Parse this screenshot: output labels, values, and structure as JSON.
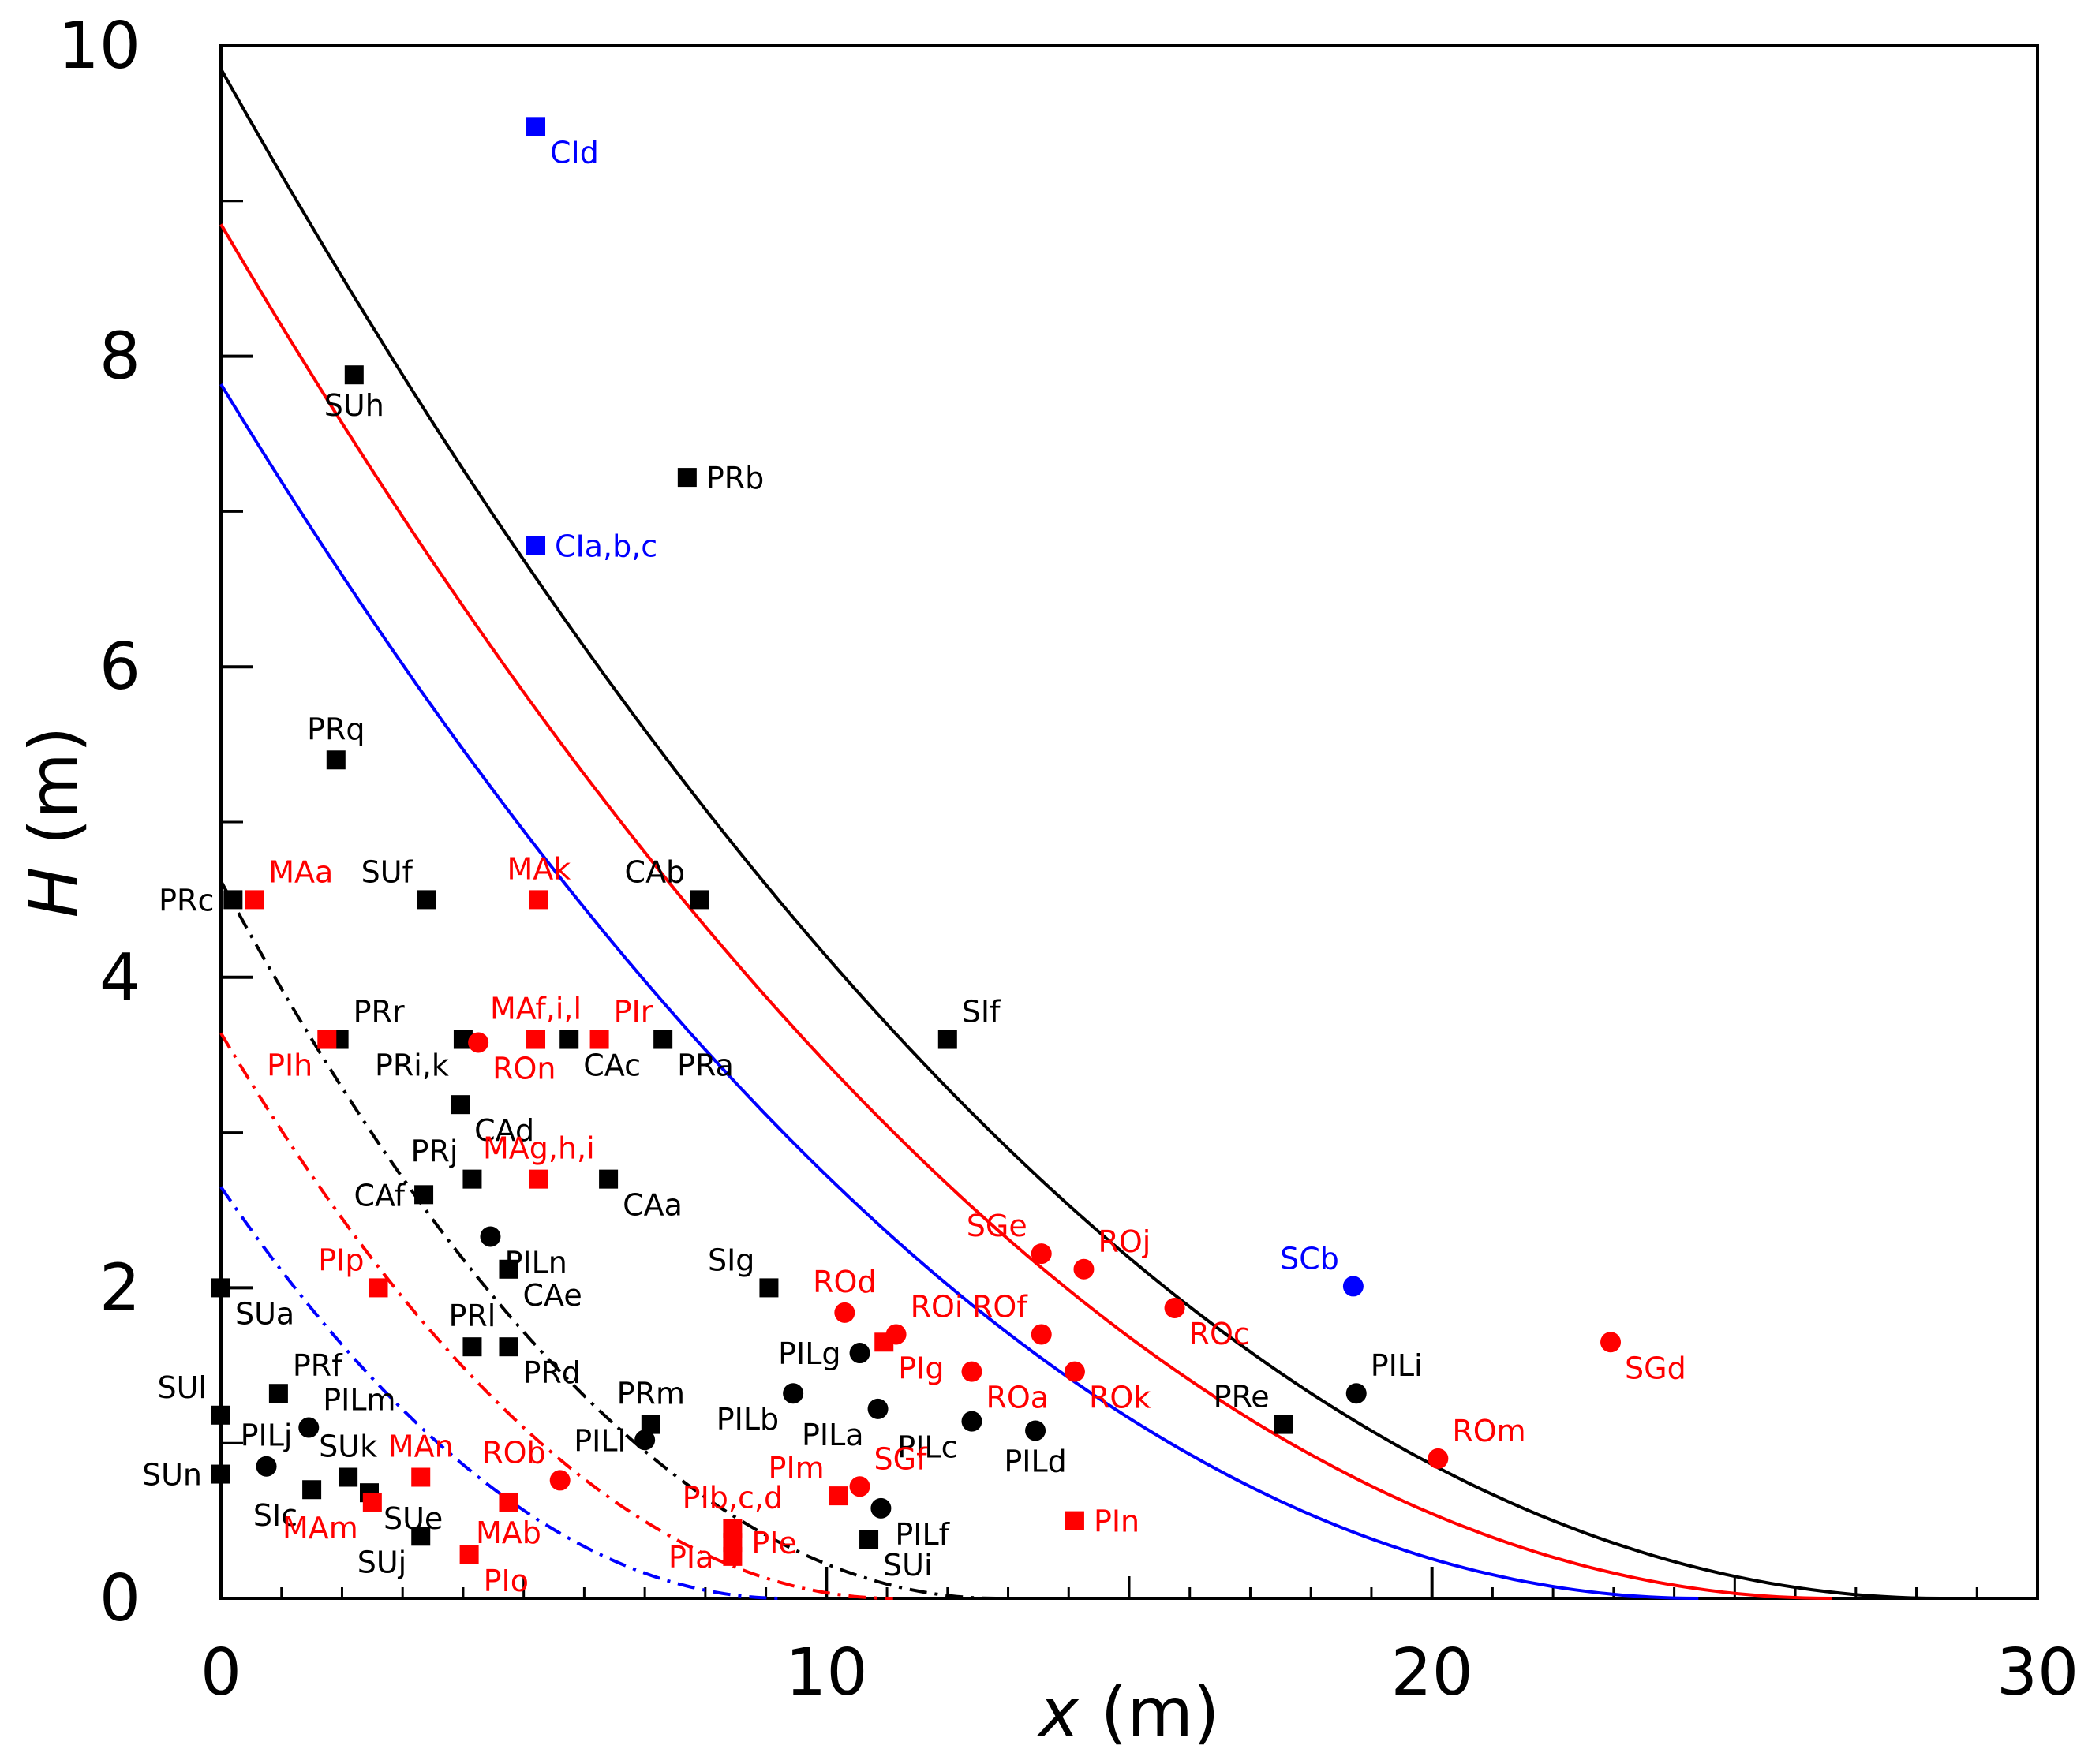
{
  "chart_data": {
    "type": "scatter",
    "title": "",
    "xlabel": {
      "var": "x",
      "unit": " (m)"
    },
    "ylabel": {
      "var": "H",
      "unit": " (m)"
    },
    "xlim": [
      0,
      30
    ],
    "ylim": [
      0,
      10
    ],
    "x_ticks": [
      "0",
      "10",
      "20",
      "30"
    ],
    "y_ticks": [
      "0",
      "2",
      "4",
      "6",
      "8",
      "10"
    ],
    "grid": false,
    "colors": {
      "black": "#000000",
      "red": "#ff0000",
      "blue": "#0000ff"
    },
    "curves": [
      {
        "name": "black-solid",
        "color": "black",
        "style": "solid",
        "h0": 9.85,
        "x_end": 28.4,
        "exponent": 2
      },
      {
        "name": "red-solid",
        "color": "red",
        "style": "solid",
        "h0": 8.85,
        "x_end": 26.6,
        "exponent": 2
      },
      {
        "name": "blue-solid",
        "color": "blue",
        "style": "solid",
        "h0": 7.82,
        "x_end": 24.4,
        "exponent": 2
      },
      {
        "name": "black-dashdot",
        "color": "black",
        "style": "dashdot",
        "h0": 4.62,
        "x_end": 12.8,
        "exponent": 2
      },
      {
        "name": "red-dashdot",
        "color": "red",
        "style": "dashdot",
        "h0": 3.64,
        "x_end": 11.1,
        "exponent": 2
      },
      {
        "name": "blue-dashdot",
        "color": "blue",
        "style": "dashdot",
        "h0": 2.65,
        "x_end": 9.3,
        "exponent": 2
      }
    ],
    "points": [
      {
        "label": "CId",
        "x": 5.2,
        "y": 9.48,
        "color": "blue",
        "marker": "square",
        "pos": "br"
      },
      {
        "label": "CIa,b,c",
        "x": 5.2,
        "y": 6.78,
        "color": "blue",
        "marker": "square",
        "pos": "r"
      },
      {
        "label": "SCb",
        "x": 18.7,
        "y": 2.01,
        "color": "blue",
        "marker": "circle",
        "pos": "tl"
      },
      {
        "label": "SUh",
        "x": 2.2,
        "y": 7.88,
        "color": "black",
        "marker": "square",
        "pos": "b"
      },
      {
        "label": "PRb",
        "x": 7.7,
        "y": 7.22,
        "color": "black",
        "marker": "square",
        "pos": "r"
      },
      {
        "label": "PRq",
        "x": 1.9,
        "y": 5.4,
        "color": "black",
        "marker": "square",
        "pos": "t"
      },
      {
        "label": "PRc",
        "x": 0.2,
        "y": 4.5,
        "color": "black",
        "marker": "square",
        "pos": "l"
      },
      {
        "label": "SUf",
        "x": 3.4,
        "y": 4.5,
        "color": "black",
        "marker": "square",
        "pos": "tl"
      },
      {
        "label": "CAb",
        "x": 7.9,
        "y": 4.5,
        "color": "black",
        "marker": "square",
        "pos": "tl"
      },
      {
        "label": "PRr",
        "x": 1.95,
        "y": 3.6,
        "color": "black",
        "marker": "square",
        "pos": "tr"
      },
      {
        "label": "PRi,k",
        "x": 4.0,
        "y": 3.6,
        "color": "black",
        "marker": "square",
        "pos": "bl"
      },
      {
        "label": "CAc",
        "x": 5.75,
        "y": 3.6,
        "color": "black",
        "marker": "square",
        "pos": "br"
      },
      {
        "label": "PRa",
        "x": 7.3,
        "y": 3.6,
        "color": "black",
        "marker": "square",
        "pos": "br"
      },
      {
        "label": "SIf",
        "x": 12.0,
        "y": 3.6,
        "color": "black",
        "marker": "square",
        "pos": "tr"
      },
      {
        "label": "CAd",
        "x": 3.95,
        "y": 3.18,
        "color": "black",
        "marker": "square",
        "pos": "br"
      },
      {
        "label": "PRj",
        "x": 4.15,
        "y": 2.7,
        "color": "black",
        "marker": "square",
        "pos": "tl"
      },
      {
        "label": "CAa",
        "x": 6.4,
        "y": 2.7,
        "color": "black",
        "marker": "square",
        "pos": "br"
      },
      {
        "label": "CAf",
        "x": 3.35,
        "y": 2.6,
        "color": "black",
        "marker": "square",
        "pos": "l"
      },
      {
        "label": "PILn",
        "x": 4.45,
        "y": 2.33,
        "color": "black",
        "marker": "circle",
        "pos": "br"
      },
      {
        "label": "CAe",
        "x": 4.75,
        "y": 2.12,
        "color": "black",
        "marker": "square",
        "pos": "br"
      },
      {
        "label": "SUa",
        "x": 0.0,
        "y": 2.0,
        "color": "black",
        "marker": "square",
        "pos": "br"
      },
      {
        "label": "SIg",
        "x": 9.05,
        "y": 2.0,
        "color": "black",
        "marker": "square",
        "pos": "tl"
      },
      {
        "label": "PRl",
        "x": 4.15,
        "y": 1.62,
        "color": "black",
        "marker": "square",
        "pos": "t"
      },
      {
        "label": "PRd",
        "x": 4.75,
        "y": 1.62,
        "color": "black",
        "marker": "square",
        "pos": "br"
      },
      {
        "label": "PILg",
        "x": 10.55,
        "y": 1.58,
        "color": "black",
        "marker": "circle",
        "pos": "l"
      },
      {
        "label": "PRf",
        "x": 0.95,
        "y": 1.32,
        "color": "black",
        "marker": "square",
        "pos": "tr"
      },
      {
        "label": "PILb",
        "x": 9.45,
        "y": 1.32,
        "color": "black",
        "marker": "circle",
        "pos": "bl"
      },
      {
        "label": "PILi",
        "x": 18.75,
        "y": 1.32,
        "color": "black",
        "marker": "circle",
        "pos": "tr"
      },
      {
        "label": "PILa",
        "x": 10.85,
        "y": 1.22,
        "color": "black",
        "marker": "circle",
        "pos": "bl"
      },
      {
        "label": "SUl",
        "x": 0.0,
        "y": 1.18,
        "color": "black",
        "marker": "square",
        "pos": "tl"
      },
      {
        "label": "PILm",
        "x": 1.45,
        "y": 1.1,
        "color": "black",
        "marker": "circle",
        "pos": "tr"
      },
      {
        "label": "PILc",
        "x": 12.4,
        "y": 1.14,
        "color": "black",
        "marker": "circle",
        "pos": "bl"
      },
      {
        "label": "PRm",
        "x": 7.1,
        "y": 1.12,
        "color": "black",
        "marker": "square",
        "pos": "t"
      },
      {
        "label": "PRe",
        "x": 17.55,
        "y": 1.12,
        "color": "black",
        "marker": "square",
        "pos": "tl"
      },
      {
        "label": "PILd",
        "x": 13.45,
        "y": 1.08,
        "color": "black",
        "marker": "circle",
        "pos": "b"
      },
      {
        "label": "PILl",
        "x": 7.0,
        "y": 1.02,
        "color": "black",
        "marker": "circle",
        "pos": "l"
      },
      {
        "label": "PILj",
        "x": 0.75,
        "y": 0.85,
        "color": "black",
        "marker": "circle",
        "pos": "t"
      },
      {
        "label": "SUn",
        "x": 0.0,
        "y": 0.8,
        "color": "black",
        "marker": "square",
        "pos": "l"
      },
      {
        "label": "SUk",
        "x": 2.1,
        "y": 0.78,
        "color": "black",
        "marker": "square",
        "pos": "t"
      },
      {
        "label": "SIc",
        "x": 1.5,
        "y": 0.7,
        "color": "black",
        "marker": "square",
        "pos": "bl"
      },
      {
        "label": "SUe",
        "x": 2.45,
        "y": 0.68,
        "color": "black",
        "marker": "square",
        "pos": "br"
      },
      {
        "label": "PILf",
        "x": 10.9,
        "y": 0.58,
        "color": "black",
        "marker": "circle",
        "pos": "br"
      },
      {
        "label": "SUj",
        "x": 3.3,
        "y": 0.4,
        "color": "black",
        "marker": "square",
        "pos": "bl"
      },
      {
        "label": "SUi",
        "x": 10.7,
        "y": 0.38,
        "color": "black",
        "marker": "square",
        "pos": "br"
      },
      {
        "label": "MAa",
        "x": 0.55,
        "y": 4.5,
        "color": "red",
        "marker": "square",
        "pos": "tr"
      },
      {
        "label": "MAk",
        "x": 5.25,
        "y": 4.5,
        "color": "red",
        "marker": "square",
        "pos": "t"
      },
      {
        "label": "PIh",
        "x": 1.75,
        "y": 3.6,
        "color": "red",
        "marker": "square",
        "pos": "bl"
      },
      {
        "label": "ROn",
        "x": 4.25,
        "y": 3.58,
        "color": "red",
        "marker": "circle",
        "pos": "br"
      },
      {
        "label": "MAf,i,l",
        "x": 5.2,
        "y": 3.6,
        "color": "red",
        "marker": "square",
        "pos": "t"
      },
      {
        "label": "PIr",
        "x": 6.25,
        "y": 3.6,
        "color": "red",
        "marker": "square",
        "pos": "tr"
      },
      {
        "label": "MAg,h,i",
        "x": 5.25,
        "y": 2.7,
        "color": "red",
        "marker": "square",
        "pos": "t"
      },
      {
        "label": "PIp",
        "x": 2.6,
        "y": 2.0,
        "color": "red",
        "marker": "square",
        "pos": "tl"
      },
      {
        "label": "SGe",
        "x": 13.55,
        "y": 2.22,
        "color": "red",
        "marker": "circle",
        "pos": "tl"
      },
      {
        "label": "ROj",
        "x": 14.25,
        "y": 2.12,
        "color": "red",
        "marker": "circle",
        "pos": "tr"
      },
      {
        "label": "ROd",
        "x": 10.3,
        "y": 1.84,
        "color": "red",
        "marker": "circle",
        "pos": "t"
      },
      {
        "label": "SGd",
        "x": 22.95,
        "y": 1.65,
        "color": "red",
        "marker": "circle",
        "pos": "br"
      },
      {
        "label": "ROi",
        "x": 11.15,
        "y": 1.7,
        "color": "red",
        "marker": "circle",
        "pos": "tr"
      },
      {
        "label": "PIg",
        "x": 10.95,
        "y": 1.65,
        "color": "red",
        "marker": "square",
        "pos": "br"
      },
      {
        "label": "ROf",
        "x": 13.55,
        "y": 1.7,
        "color": "red",
        "marker": "circle",
        "pos": "tl"
      },
      {
        "label": "ROc",
        "x": 15.75,
        "y": 1.87,
        "color": "red",
        "marker": "circle",
        "pos": "br"
      },
      {
        "label": "ROa",
        "x": 12.4,
        "y": 1.46,
        "color": "red",
        "marker": "circle",
        "pos": "br"
      },
      {
        "label": "ROk",
        "x": 14.1,
        "y": 1.46,
        "color": "red",
        "marker": "circle",
        "pos": "br"
      },
      {
        "label": "ROm",
        "x": 20.1,
        "y": 0.9,
        "color": "red",
        "marker": "circle",
        "pos": "tr"
      },
      {
        "label": "MAn",
        "x": 3.3,
        "y": 0.78,
        "color": "red",
        "marker": "square",
        "pos": "t"
      },
      {
        "label": "ROb",
        "x": 5.6,
        "y": 0.76,
        "color": "red",
        "marker": "circle",
        "pos": "tl"
      },
      {
        "label": "PIm",
        "x": 10.2,
        "y": 0.66,
        "color": "red",
        "marker": "square",
        "pos": "tl"
      },
      {
        "label": "SGf",
        "x": 10.55,
        "y": 0.72,
        "color": "red",
        "marker": "circle",
        "pos": "tr"
      },
      {
        "label": "MAm",
        "x": 2.5,
        "y": 0.62,
        "color": "red",
        "marker": "square",
        "pos": "bl"
      },
      {
        "label": "MAb",
        "x": 4.75,
        "y": 0.62,
        "color": "red",
        "marker": "square",
        "pos": "b"
      },
      {
        "label": "PIn",
        "x": 14.1,
        "y": 0.5,
        "color": "red",
        "marker": "square",
        "pos": "r"
      },
      {
        "label": "PIb,c,d",
        "x": 8.45,
        "y": 0.45,
        "color": "red",
        "marker": "square",
        "pos": "t"
      },
      {
        "label": "PIe",
        "x": 8.45,
        "y": 0.36,
        "color": "red",
        "marker": "square",
        "pos": "r"
      },
      {
        "label": "PIa",
        "x": 8.45,
        "y": 0.27,
        "color": "red",
        "marker": "square",
        "pos": "l"
      },
      {
        "label": "PIo",
        "x": 4.1,
        "y": 0.28,
        "color": "red",
        "marker": "square",
        "pos": "br"
      }
    ]
  }
}
